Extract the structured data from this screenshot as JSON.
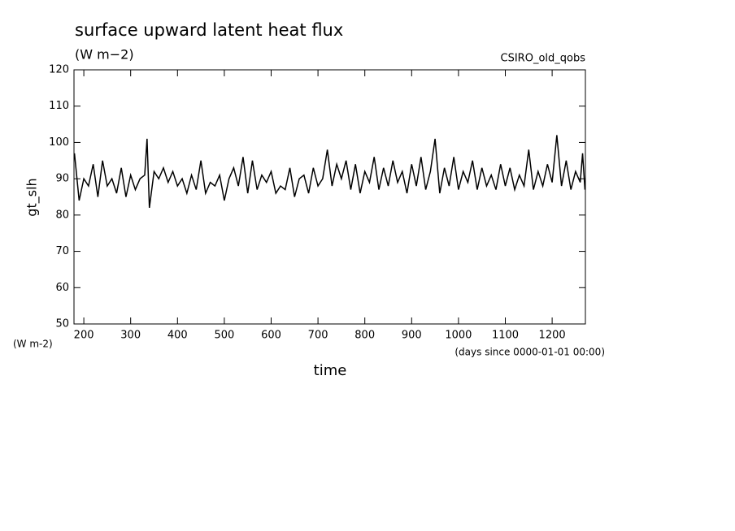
{
  "chart_data": {
    "type": "line",
    "title": "surface upward latent heat flux",
    "subtitle": "(W m−2)",
    "annotation": "CSIRO_old_qobs",
    "y_label": "gt_slh",
    "y_units": "(W m-2)",
    "x_units": "(days since 0000-01-01 00:00)",
    "x_label": "time",
    "xlim": [
      179,
      1271
    ],
    "ylim": [
      50,
      120
    ],
    "xticks": [
      200,
      300,
      400,
      500,
      600,
      700,
      800,
      900,
      1000,
      1100,
      1200
    ],
    "yticks": [
      50,
      60,
      70,
      80,
      90,
      100,
      110,
      120
    ],
    "x": [
      180,
      190,
      200,
      210,
      220,
      230,
      240,
      250,
      260,
      270,
      280,
      290,
      300,
      310,
      320,
      330,
      335,
      340,
      350,
      360,
      370,
      380,
      390,
      400,
      410,
      420,
      430,
      440,
      450,
      460,
      470,
      480,
      490,
      500,
      510,
      520,
      530,
      540,
      550,
      560,
      570,
      580,
      590,
      600,
      610,
      620,
      630,
      640,
      650,
      660,
      670,
      680,
      690,
      700,
      710,
      720,
      730,
      740,
      750,
      760,
      770,
      780,
      790,
      800,
      810,
      820,
      830,
      840,
      850,
      860,
      870,
      880,
      890,
      900,
      910,
      920,
      930,
      940,
      950,
      960,
      970,
      980,
      990,
      1000,
      1010,
      1020,
      1030,
      1040,
      1050,
      1060,
      1070,
      1080,
      1090,
      1100,
      1110,
      1120,
      1130,
      1140,
      1150,
      1160,
      1170,
      1180,
      1190,
      1200,
      1210,
      1220,
      1230,
      1240,
      1250,
      1260,
      1265,
      1270
    ],
    "series": [
      {
        "name": "gt_slh",
        "color": "#000000",
        "values": [
          97,
          84,
          90,
          88,
          94,
          85,
          95,
          88,
          90,
          86,
          93,
          85,
          91,
          87,
          90,
          91,
          101,
          82,
          92,
          90,
          93,
          89,
          92,
          88,
          90,
          86,
          91,
          87,
          95,
          86,
          89,
          88,
          91,
          84,
          90,
          93,
          88,
          96,
          86,
          95,
          87,
          91,
          89,
          92,
          86,
          88,
          87,
          93,
          85,
          90,
          91,
          86,
          93,
          88,
          90,
          98,
          88,
          94,
          90,
          95,
          87,
          94,
          86,
          92,
          89,
          96,
          87,
          93,
          88,
          95,
          89,
          92,
          86,
          94,
          88,
          96,
          87,
          92,
          101,
          86,
          93,
          88,
          96,
          87,
          92,
          89,
          95,
          87,
          93,
          88,
          91,
          87,
          94,
          88,
          93,
          87,
          91,
          88,
          98,
          87,
          92,
          88,
          94,
          89,
          102,
          88,
          95,
          87,
          92,
          89,
          97,
          87
        ]
      }
    ]
  }
}
